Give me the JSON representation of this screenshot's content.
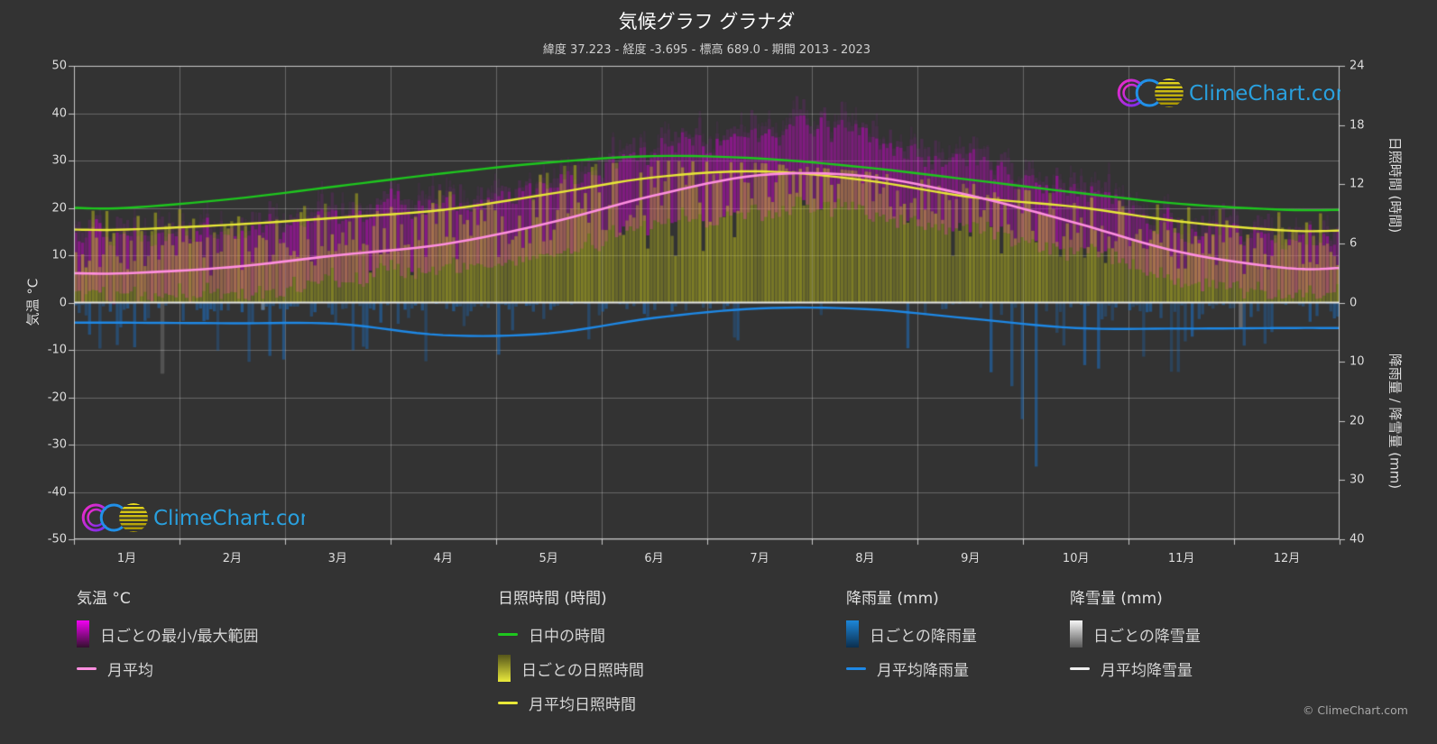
{
  "header": {
    "title": "気候グラフ グラナダ",
    "subtitle": "緯度 37.223 - 経度 -3.695 - 標高 689.0 - 期間 2013 - 2023"
  },
  "watermark": {
    "brand": "ClimeChart.com",
    "copyright": "© ClimeChart.com"
  },
  "axes": {
    "temp_axis_title": "気温 °C",
    "sun_axis_title": "日照時間 (時間)",
    "precip_axis_title": "降雨量 / 降雪量 (mm)",
    "temp_ticks": [
      50,
      40,
      30,
      20,
      10,
      0,
      -10,
      -20,
      -30,
      -40,
      -50
    ],
    "sun_ticks": [
      24,
      18,
      12,
      6,
      0
    ],
    "precip_ticks": [
      10,
      20,
      30,
      40
    ],
    "month_labels": [
      "1月",
      "2月",
      "3月",
      "4月",
      "5月",
      "6月",
      "7月",
      "8月",
      "9月",
      "10月",
      "11月",
      "12月"
    ]
  },
  "legend": {
    "temp": {
      "title": "気温 °C",
      "range": "日ごとの最小/最大範囲",
      "mean": "月平均"
    },
    "sun": {
      "title": "日照時間 (時間)",
      "daylight": "日中の時間",
      "daily": "日ごとの日照時間",
      "mean": "月平均日照時間"
    },
    "rain": {
      "title": "降雨量 (mm)",
      "daily": "日ごとの降雨量",
      "mean": "月平均降雨量"
    },
    "snow": {
      "title": "降雪量 (mm)",
      "daily": "日ごとの降雪量",
      "mean": "月平均降雪量"
    }
  },
  "colors": {
    "background": "#333333",
    "grid": "rgba(255,255,255,0.26)",
    "axis": "rgba(215,215,215,0.9)",
    "zero_line": "rgba(238,238,238,0.95)",
    "daylight_line": "#1ec71e",
    "sunshine_line": "#e8e838",
    "temp_line": "#ff8fe0",
    "rain_line": "#1e88e5",
    "snow_line": "#eeeeee",
    "temp_bar": "#d600d6",
    "sun_bar": "#c9c919",
    "rain_bar": "#1973cd",
    "snow_bar": "#e1e1e4",
    "logo_text": "#2aa7e8"
  },
  "chart_data": {
    "type": "line",
    "subtype": "climate-graph-composite",
    "title": "気候グラフ グラナダ",
    "location": {
      "latitude": 37.223,
      "longitude": -3.695,
      "elevation_m": 689.0,
      "period": "2013 - 2023"
    },
    "categories": [
      "1月",
      "2月",
      "3月",
      "4月",
      "5月",
      "6月",
      "7月",
      "8月",
      "9月",
      "10月",
      "11月",
      "12月"
    ],
    "axis_ranges": {
      "temp_c": [
        -50,
        50
      ],
      "sun_hours": [
        0,
        24
      ],
      "precip_mm": [
        0,
        40
      ]
    },
    "legend_position": "bottom",
    "grid": true,
    "series": [
      {
        "name": "日中の時間",
        "unit": "時間",
        "color": "#1ec71e",
        "values": [
          9.6,
          10.5,
          11.8,
          13.1,
          14.2,
          14.85,
          14.6,
          13.7,
          12.45,
          11.15,
          10.0,
          9.4
        ]
      },
      {
        "name": "月平均日照時間",
        "unit": "時間",
        "color": "#e8e838",
        "values": [
          7.4,
          7.9,
          8.6,
          9.4,
          11.0,
          12.7,
          13.3,
          12.4,
          10.7,
          9.7,
          8.2,
          7.3
        ]
      },
      {
        "name": "月平均",
        "unit": "°C",
        "color": "#ff8fe0",
        "values": [
          6.2,
          7.5,
          10.0,
          12.3,
          16.8,
          22.6,
          26.9,
          26.7,
          22.6,
          16.8,
          10.6,
          7.3
        ]
      },
      {
        "name": "月平均降雨量",
        "unit": "mm/日",
        "color": "#1e88e5",
        "values": [
          3.4,
          3.5,
          3.6,
          5.5,
          5.2,
          2.6,
          1.0,
          1.1,
          2.7,
          4.3,
          4.4,
          4.3
        ]
      },
      {
        "name": "月平均降雪量",
        "unit": "mm/日",
        "color": "#eeeeee",
        "values": [
          0,
          0,
          0,
          0,
          0,
          0,
          0,
          0,
          0,
          0,
          0,
          0
        ]
      }
    ],
    "daily_simulation": {
      "seed": 20,
      "tmax_mean": [
        14.2,
        15.5,
        18.5,
        20.5,
        25.5,
        31.5,
        35.5,
        35.0,
        29.5,
        23.5,
        17.0,
        14.5
      ],
      "tmin_mean": [
        1.5,
        2.2,
        4.8,
        7.0,
        10.8,
        15.8,
        19.2,
        19.2,
        15.5,
        11.2,
        5.5,
        2.5
      ],
      "rain_prob": [
        0.3,
        0.28,
        0.3,
        0.4,
        0.34,
        0.18,
        0.06,
        0.08,
        0.24,
        0.34,
        0.32,
        0.32
      ],
      "rain_scale_mm": [
        4.5,
        5,
        5.5,
        5.5,
        5,
        3.5,
        2,
        2.5,
        5.5,
        7,
        6.5,
        5.5
      ],
      "snow_prob": [
        0.05,
        0.05,
        0.025,
        0.004,
        0,
        0,
        0,
        0,
        0,
        0,
        0.01,
        0.03
      ],
      "snow_scale_mm": [
        8,
        10,
        9,
        5,
        0,
        0,
        0,
        0,
        0,
        0,
        4,
        6
      ]
    }
  }
}
